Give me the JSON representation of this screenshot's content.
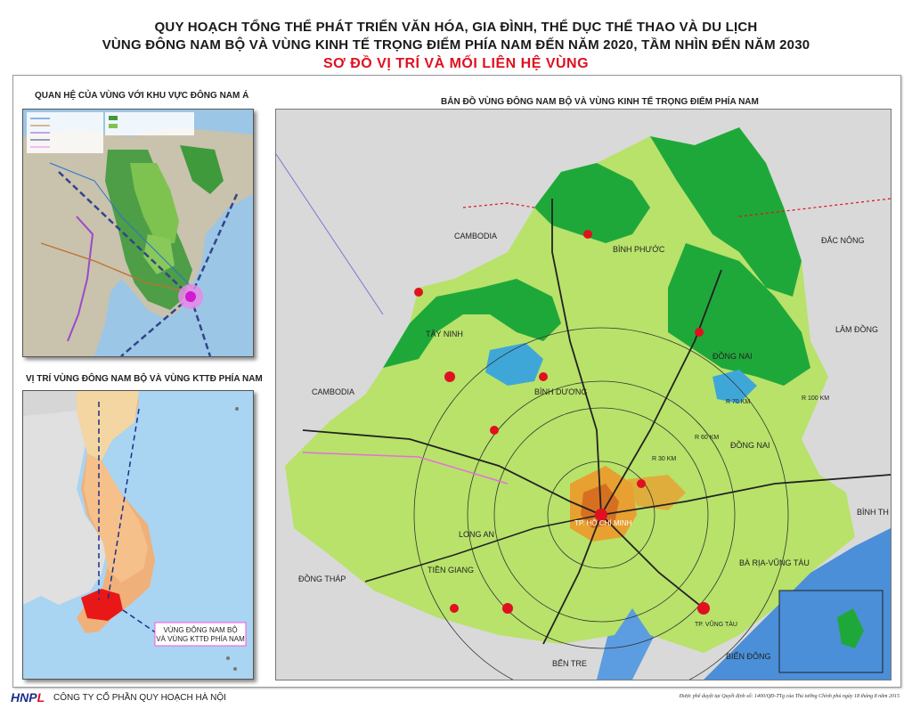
{
  "title": {
    "line1": "QUY HOẠCH TỔNG THỂ PHÁT TRIỂN VĂN HÓA, GIA ĐÌNH, THỂ DỤC THỂ THAO VÀ DU LỊCH",
    "line2": "VÙNG ĐÔNG NAM BỘ VÀ VÙNG KINH TẾ TRỌNG ĐIỂM PHÍA NAM ĐẾN NĂM 2020, TẦM NHÌN ĐẾN NĂM 2030",
    "line3": "SƠ ĐỒ VỊ TRÍ VÀ MỐI LIÊN HỆ VÙNG"
  },
  "panels": {
    "southeast_asia": "QUAN HỆ CỦA VÙNG VỚI KHU VỰC ĐÔNG NAM Á",
    "location": "VỊ TRÍ VÙNG ĐÔNG NAM BỘ VÀ VÙNG KTTĐ PHÍA NAM",
    "location_callout": [
      "VÙNG ĐÔNG NAM BỘ",
      "VÀ VÙNG KTTĐ PHÍA NAM"
    ],
    "main_map": "BẢN ĐỒ VÙNG ĐÔNG NAM BỘ VÀ VÙNG KINH TẾ TRỌNG ĐIỂM PHÍA NAM"
  },
  "map_labels": {
    "cambodia_north": "CAMBODIA",
    "cambodia_west": "CAMBODIA",
    "binh_phuoc": "BÌNH PHƯỚC",
    "tay_ninh": "TÂY NINH",
    "binh_duong": "BÌNH DƯƠNG",
    "dong_nai_north": "ĐỒNG NAI",
    "dong_nai_south": "ĐỒNG NAI",
    "dak_nong": "ĐẮC NÔNG",
    "lam_dong": "LÂM ĐỒNG",
    "binh_thuan": "BÌNH TH",
    "long_an": "LONG AN",
    "tp_hcm": "TP. HỒ CHÍ MINH",
    "dong_thap": "ĐỒNG THÁP",
    "tien_giang": "TIỀN GIANG",
    "ba_ria": "BÀ RỊA-VŨNG TÀU",
    "tp_vung_tau": "TP. VŨNG TÀU",
    "bien_dong": "BIỂN ĐÔNG",
    "ben_tre": "BẾN TRE",
    "r30": "R 30 KM",
    "r60": "R 60 KM",
    "r70": "R 70 KM",
    "r100": "R 100 KM"
  },
  "footer": {
    "logo_main": "HNP",
    "logo_accent": "L",
    "company": "CÔNG TY CỔ PHẦN QUY HOẠCH HÀ NỘI",
    "note": "Được phê duyệt tại Quyết định số: 1400/QĐ-TTg của Thủ tướng Chính phủ ngày 18 tháng 8 năm 2015"
  },
  "colors": {
    "title_red": "#e01020",
    "region_green": "#b8e26a",
    "forest_green": "#1fa83a",
    "sea_blue": "#4a8fd8",
    "urban_orange": "#e8a030",
    "land_grey": "#cfcfcf"
  }
}
